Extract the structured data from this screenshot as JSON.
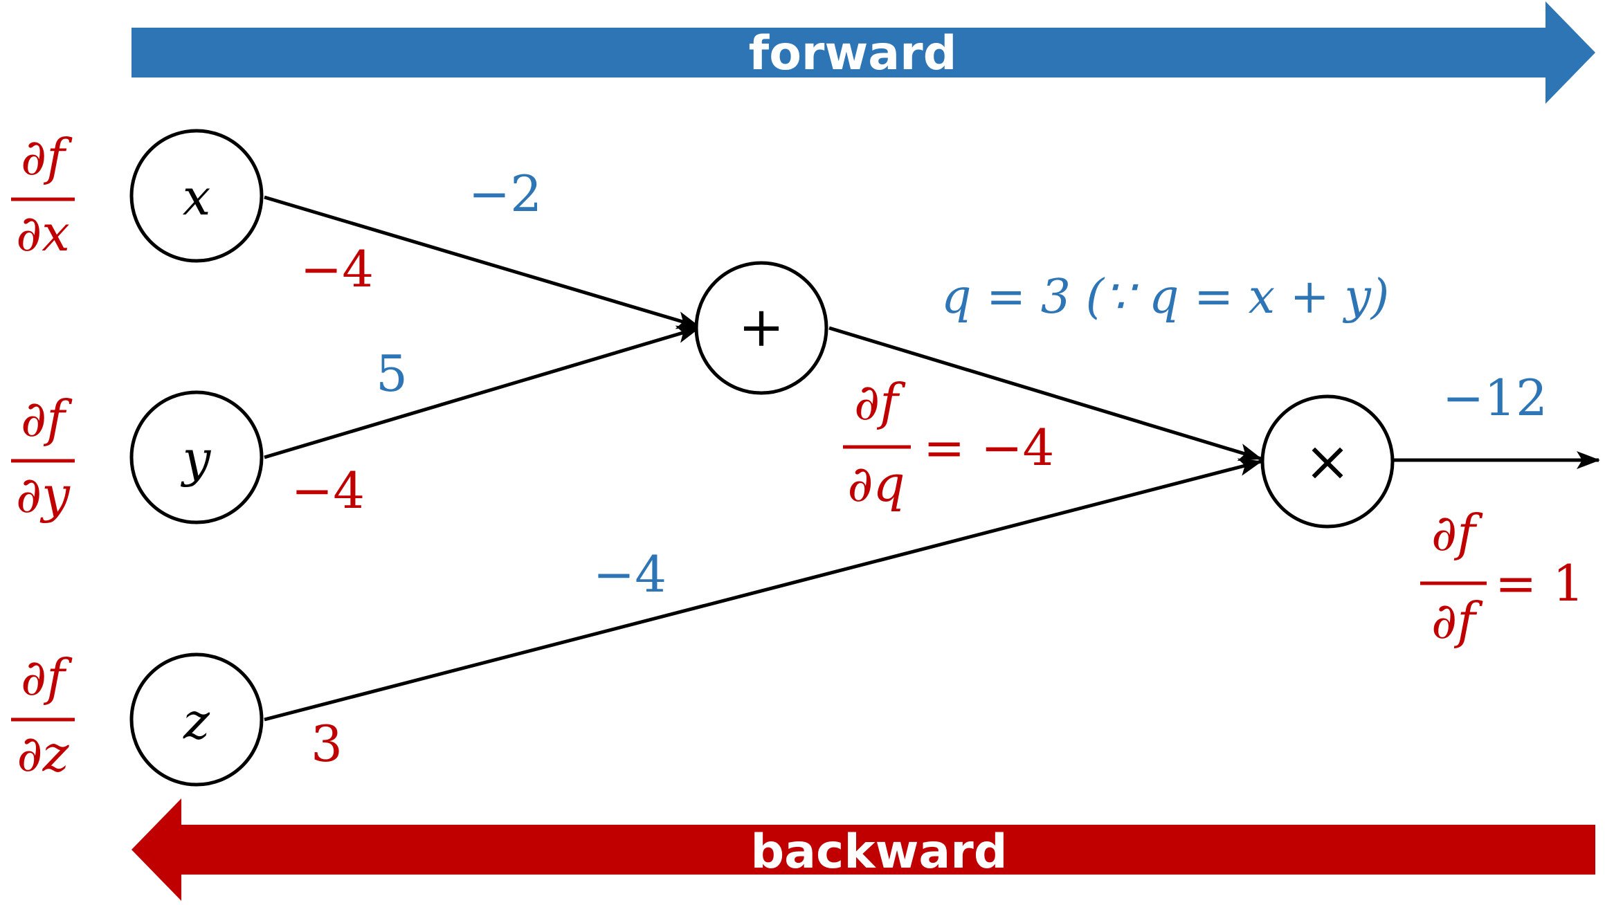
{
  "colors": {
    "forward": "#2E75B6",
    "backward": "#C00000",
    "edge": "#000000"
  },
  "banners": {
    "forward_label": "forward",
    "backward_label": "backward"
  },
  "nodes": {
    "x": "x",
    "y": "y",
    "z": "z",
    "add": "+",
    "mul": "×"
  },
  "gradients_left": {
    "x": {
      "num": "∂f",
      "den": "∂x"
    },
    "y": {
      "num": "∂f",
      "den": "∂y"
    },
    "z": {
      "num": "∂f",
      "den": "∂z"
    }
  },
  "forward_values": {
    "x": "−2",
    "y": "5",
    "z": "−4",
    "q": "q = 3 (∵ q = x + y)",
    "out": "−12"
  },
  "backward_values": {
    "x": "−4",
    "y": "−4",
    "z": "3",
    "dq": {
      "num": "∂f",
      "den": "∂q",
      "value": "= −4"
    },
    "df": {
      "num": "∂f",
      "den": "∂f",
      "value": "= 1"
    }
  }
}
